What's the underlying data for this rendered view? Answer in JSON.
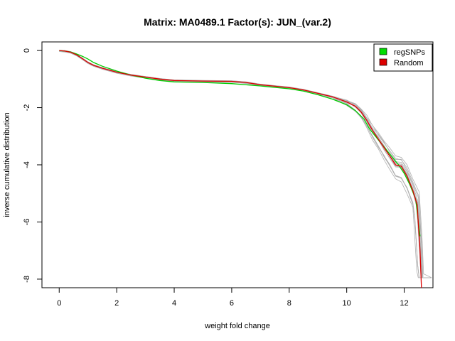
{
  "chart_data": {
    "type": "line",
    "title": "Matrix: MA0489.1 Factor(s): JUN_(var.2)",
    "xlabel": "weight fold change",
    "ylabel": "inverse cumulative distribution",
    "xlim": [
      -0.6,
      13.0
    ],
    "ylim": [
      -8.3,
      0.3
    ],
    "x_ticks": [
      0,
      2,
      4,
      6,
      8,
      10,
      12
    ],
    "y_ticks": [
      0,
      -2,
      -4,
      -6,
      -8
    ],
    "grid": false,
    "legend_position": "top-right",
    "legend": [
      {
        "label": "regSNPs",
        "color": "#00dd00"
      },
      {
        "label": "Random",
        "color": "#dd0000"
      }
    ],
    "series": [
      {
        "name": "regSNPs",
        "color": "#00cc00",
        "x": [
          0,
          0.2,
          0.4,
          0.6,
          0.8,
          1.0,
          1.2,
          1.5,
          2.0,
          2.5,
          3.0,
          3.5,
          4.0,
          5.0,
          6.0,
          7.0,
          8.0,
          8.5,
          9.0,
          9.5,
          10.0,
          10.3,
          10.6,
          10.8,
          11.0,
          11.2,
          11.4,
          11.6,
          11.8,
          12.0,
          12.2,
          12.4,
          12.55
        ],
        "y": [
          0,
          -0.02,
          -0.05,
          -0.12,
          -0.2,
          -0.3,
          -0.42,
          -0.55,
          -0.72,
          -0.86,
          -0.97,
          -1.05,
          -1.1,
          -1.12,
          -1.16,
          -1.24,
          -1.34,
          -1.42,
          -1.55,
          -1.7,
          -1.9,
          -2.1,
          -2.4,
          -2.75,
          -3.0,
          -3.25,
          -3.5,
          -3.75,
          -4.0,
          -4.3,
          -4.7,
          -5.2,
          -6.5
        ]
      },
      {
        "name": "Random",
        "color": "#dd0000",
        "x": [
          0,
          0.2,
          0.4,
          0.6,
          0.8,
          1.0,
          1.2,
          1.5,
          2.0,
          2.5,
          3.0,
          3.5,
          4.0,
          5.0,
          6.0,
          6.5,
          7.0,
          8.0,
          8.5,
          9.0,
          9.5,
          10.0,
          10.3,
          10.5,
          10.7,
          10.9,
          11.1,
          11.3,
          11.5,
          11.7,
          11.9,
          12.1,
          12.3,
          12.45,
          12.55,
          12.6
        ],
        "y": [
          0,
          -0.02,
          -0.06,
          -0.15,
          -0.28,
          -0.42,
          -0.52,
          -0.62,
          -0.76,
          -0.86,
          -0.93,
          -1.0,
          -1.05,
          -1.07,
          -1.08,
          -1.12,
          -1.2,
          -1.3,
          -1.38,
          -1.5,
          -1.62,
          -1.8,
          -1.95,
          -2.15,
          -2.45,
          -2.8,
          -3.1,
          -3.4,
          -3.7,
          -4.0,
          -4.05,
          -4.4,
          -4.9,
          -5.4,
          -7.0,
          -8.3
        ]
      }
    ],
    "background_series": {
      "name": "Random samples",
      "color": "#b0b0b0",
      "count": 14
    }
  }
}
